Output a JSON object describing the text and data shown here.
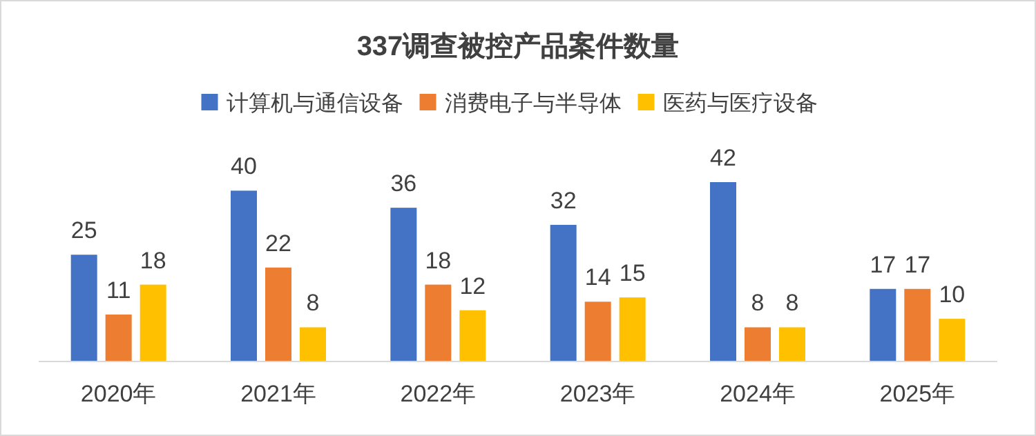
{
  "chart_data": {
    "type": "bar",
    "title": "337调查被控产品案件数量",
    "categories": [
      "2020年",
      "2021年",
      "2022年",
      "2023年",
      "2024年",
      "2025年"
    ],
    "series": [
      {
        "name": "计算机与通信设备",
        "color": "#4472c4",
        "values": [
          25,
          40,
          36,
          32,
          42,
          17
        ]
      },
      {
        "name": "消费电子与半导体",
        "color": "#ed7d31",
        "values": [
          11,
          22,
          18,
          14,
          8,
          17
        ]
      },
      {
        "name": "医药与医疗设备",
        "color": "#ffc000",
        "values": [
          18,
          8,
          12,
          15,
          8,
          10
        ]
      }
    ],
    "data_labels": true,
    "legend": "top"
  }
}
